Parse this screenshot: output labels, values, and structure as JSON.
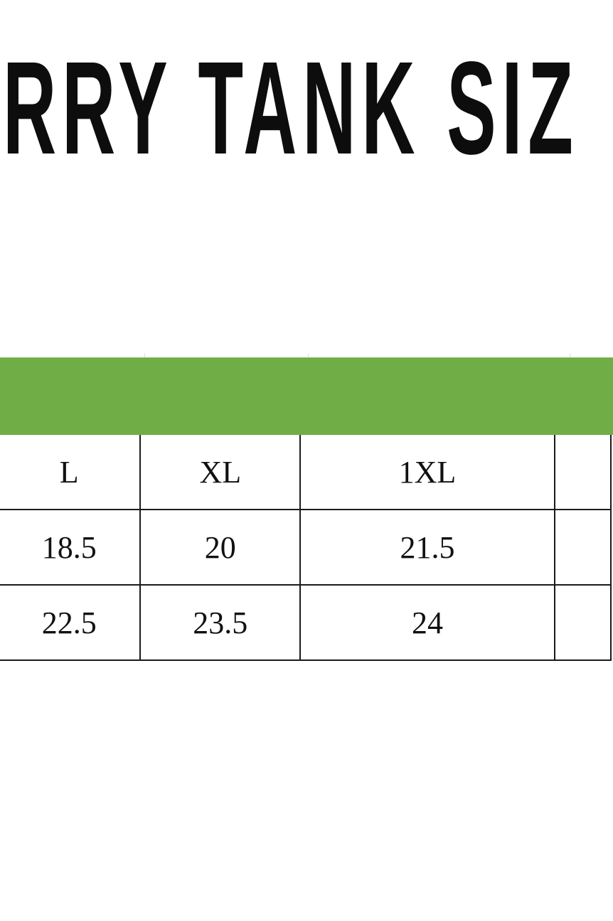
{
  "title": "RRY TANK SIZ",
  "colors": {
    "header_band": "#70ad47",
    "grid": "#1a1a1a"
  },
  "table": {
    "rows": [
      [
        "L",
        "XL",
        "1XL",
        ""
      ],
      [
        "18.5",
        "20",
        "21.5",
        ""
      ],
      [
        "22.5",
        "23.5",
        "24",
        ""
      ]
    ]
  }
}
